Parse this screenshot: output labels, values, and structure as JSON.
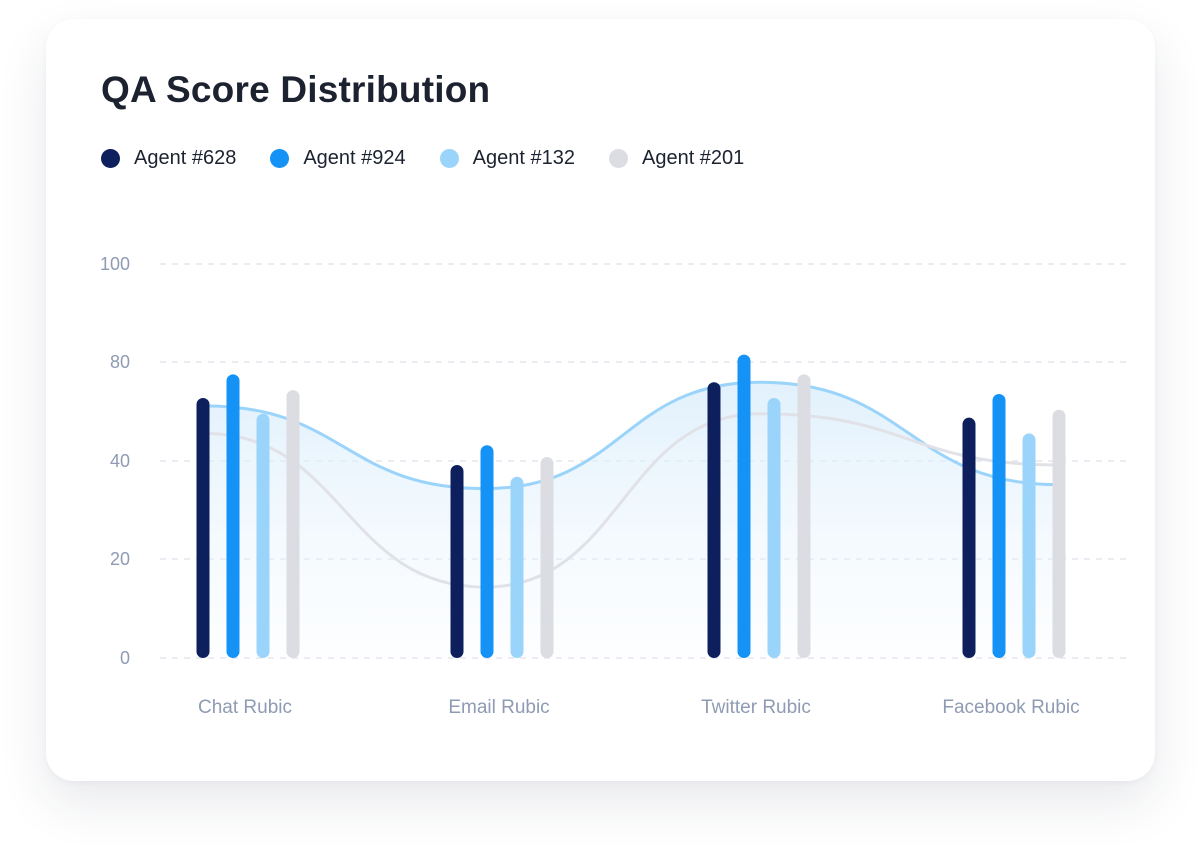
{
  "title": "QA Score Distribution",
  "colors": {
    "agent628": "#0d1f5c",
    "agent924": "#1592f5",
    "agent132": "#9bd4fa",
    "agent201": "#dcdce3",
    "grid": "#e3e6ee",
    "tick": "#8e9bb3",
    "curve_blue": "#9bd4fa",
    "curve_grey": "#e1e2e8"
  },
  "chart_data": {
    "type": "bar",
    "title": "QA Score Distribution",
    "categories": [
      "Chat Rubic",
      "Email Rubic",
      "Twitter Rubic",
      "Facebook Rubic"
    ],
    "y_ticks": [
      "0",
      "20",
      "40",
      "80",
      "100"
    ],
    "grid": true,
    "legend_position": "top-left",
    "series": [
      {
        "name": "Agent #628",
        "color": "#0d1f5c",
        "values": [
          66,
          49,
          70,
          61
        ]
      },
      {
        "name": "Agent #924",
        "color": "#1592f5",
        "values": [
          72,
          54,
          77,
          67
        ]
      },
      {
        "name": "Agent #132",
        "color": "#9bd4fa",
        "values": [
          62,
          46,
          66,
          57
        ]
      },
      {
        "name": "Agent #201",
        "color": "#dcdce3",
        "values": [
          68,
          51,
          72,
          63
        ]
      }
    ],
    "trend_lines": [
      {
        "color": "#9bd4fa",
        "filled": true,
        "values": [
          64,
          43,
          70,
          44
        ]
      },
      {
        "color": "#e1e2e8",
        "filled": false,
        "values": [
          57,
          18,
          62,
          49
        ]
      }
    ]
  }
}
